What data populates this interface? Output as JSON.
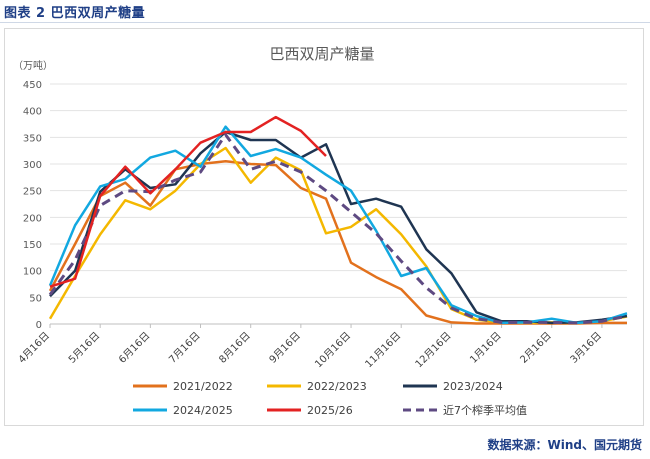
{
  "figure": {
    "caption": "图表 2  巴西双周产糖量",
    "source": "数据来源：Wind、国元期货"
  },
  "colors": {
    "2021/2022": "#e2711d",
    "2022/2023": "#f4b800",
    "2023/2024": "#1f3552",
    "2024/2025": "#12a8e0",
    "2025/26": "#e32222",
    "avg": "#5e4a82"
  },
  "chart_data": {
    "type": "line",
    "title": "巴西双周产糖量",
    "unit_label": "（万吨）",
    "ylim": [
      0,
      450
    ],
    "yticks": [
      0,
      50,
      100,
      150,
      200,
      250,
      300,
      350,
      400,
      450
    ],
    "grid": true,
    "legend_position": "bottom",
    "x_tick_labels": [
      "4月16日",
      "5月16日",
      "6月16日",
      "7月16日",
      "8月16日",
      "9月16日",
      "10月16日",
      "11月16日",
      "12月16日",
      "1月16日",
      "2月16日",
      "3月16日"
    ],
    "x_count": 24,
    "series": [
      {
        "name": "2021/2022",
        "style": "solid",
        "values": [
          62,
          150,
          240,
          265,
          222,
          290,
          300,
          305,
          300,
          298,
          255,
          235,
          115,
          88,
          65,
          16,
          3,
          1,
          1,
          1,
          1,
          1,
          2,
          2
        ]
      },
      {
        "name": "2022/2023",
        "style": "solid",
        "values": [
          10,
          90,
          168,
          232,
          215,
          250,
          300,
          330,
          265,
          312,
          288,
          170,
          182,
          215,
          168,
          108,
          28,
          8,
          3,
          2,
          3,
          2,
          5,
          14
        ]
      },
      {
        "name": "2023/2024",
        "style": "solid",
        "values": [
          52,
          100,
          248,
          290,
          255,
          262,
          320,
          360,
          345,
          345,
          312,
          337,
          225,
          235,
          220,
          140,
          95,
          22,
          5,
          5,
          2,
          3,
          8,
          15
        ]
      },
      {
        "name": "2024/2025",
        "style": "solid",
        "values": [
          72,
          185,
          258,
          272,
          312,
          325,
          295,
          370,
          315,
          328,
          312,
          280,
          250,
          175,
          90,
          105,
          35,
          15,
          2,
          3,
          10,
          2,
          5,
          20
        ]
      },
      {
        "name": "2025/26",
        "style": "solid",
        "values": [
          70,
          85,
          240,
          295,
          245,
          290,
          340,
          360,
          360,
          388,
          362,
          315
        ]
      },
      {
        "name": "近7个榨季平均值",
        "style": "dashed",
        "values": [
          55,
          120,
          222,
          250,
          248,
          270,
          285,
          355,
          290,
          305,
          285,
          250,
          210,
          170,
          118,
          68,
          30,
          10,
          3,
          3,
          3,
          2,
          5,
          15
        ]
      }
    ]
  }
}
